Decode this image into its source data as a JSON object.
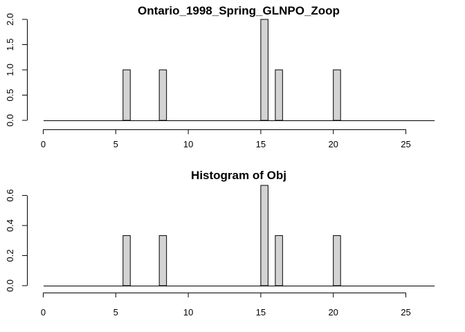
{
  "chart_data": [
    {
      "type": "bar",
      "title": "Ontario_1998_Spring_GLNPO_Zoop",
      "xlabel": "",
      "ylabel": "",
      "xlim": [
        0,
        27
      ],
      "ylim": [
        0,
        2
      ],
      "xticks": [
        "0",
        "5",
        "10",
        "15",
        "20",
        "25"
      ],
      "yticks": [
        "0.0",
        "0.5",
        "1.0",
        "1.5",
        "2.0"
      ],
      "bin_width": 0.5,
      "bins": [
        {
          "x0": 5.5,
          "x1": 6.0,
          "value": 1
        },
        {
          "x0": 8.0,
          "x1": 8.5,
          "value": 1
        },
        {
          "x0": 15.0,
          "x1": 15.5,
          "value": 2
        },
        {
          "x0": 16.0,
          "x1": 16.5,
          "value": 1
        },
        {
          "x0": 20.0,
          "x1": 20.5,
          "value": 1
        }
      ],
      "grid": false
    },
    {
      "type": "bar",
      "title": "Histogram of Obj",
      "xlabel": "",
      "ylabel": "",
      "xlim": [
        0,
        27
      ],
      "ylim": [
        0,
        0.667
      ],
      "xticks": [
        "0",
        "5",
        "10",
        "15",
        "20",
        "25"
      ],
      "yticks": [
        "0.0",
        "0.2",
        "0.4",
        "0.6"
      ],
      "bin_width": 0.5,
      "bins": [
        {
          "x0": 5.5,
          "x1": 6.0,
          "value": 0.333
        },
        {
          "x0": 8.0,
          "x1": 8.5,
          "value": 0.333
        },
        {
          "x0": 15.0,
          "x1": 15.5,
          "value": 0.667
        },
        {
          "x0": 16.0,
          "x1": 16.5,
          "value": 0.333
        },
        {
          "x0": 20.0,
          "x1": 20.5,
          "value": 0.333
        }
      ],
      "grid": false
    }
  ]
}
